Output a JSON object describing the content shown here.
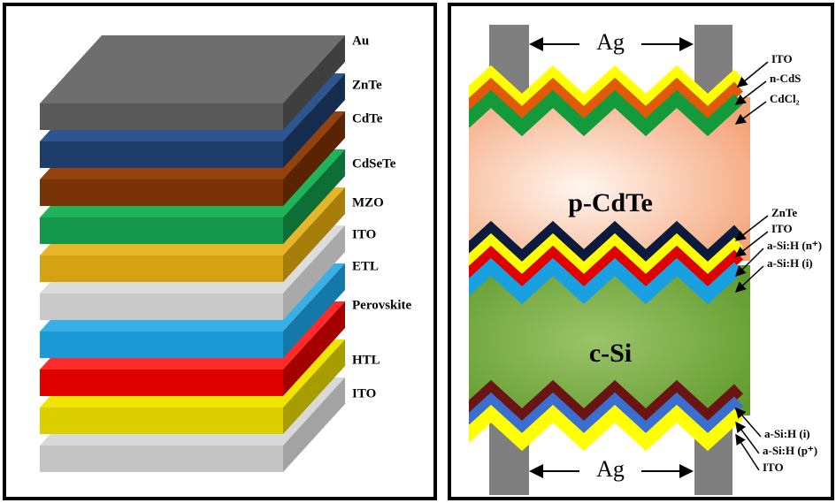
{
  "left": {
    "layers": [
      "Au",
      "ZnTe",
      "CdTe",
      "CdSeTe",
      "MZO",
      "ITO",
      "ETL",
      "Perovskite",
      "HTL",
      "ITO"
    ]
  },
  "right": {
    "top_electrode": "Ag",
    "bottom_electrode": "Ag",
    "regions": [
      "p-CdTe",
      "c-Si"
    ],
    "top_labels": [
      "ITO",
      "n-CdS",
      "CdCl₂"
    ],
    "middle_labels": [
      "ZnTe",
      "ITO",
      "a-Si:H (n⁺)",
      "a-Si:H (i)"
    ],
    "bottom_labels": [
      "a-Si:H (i)",
      "a-Si:H (p⁺)",
      "ITO"
    ]
  }
}
